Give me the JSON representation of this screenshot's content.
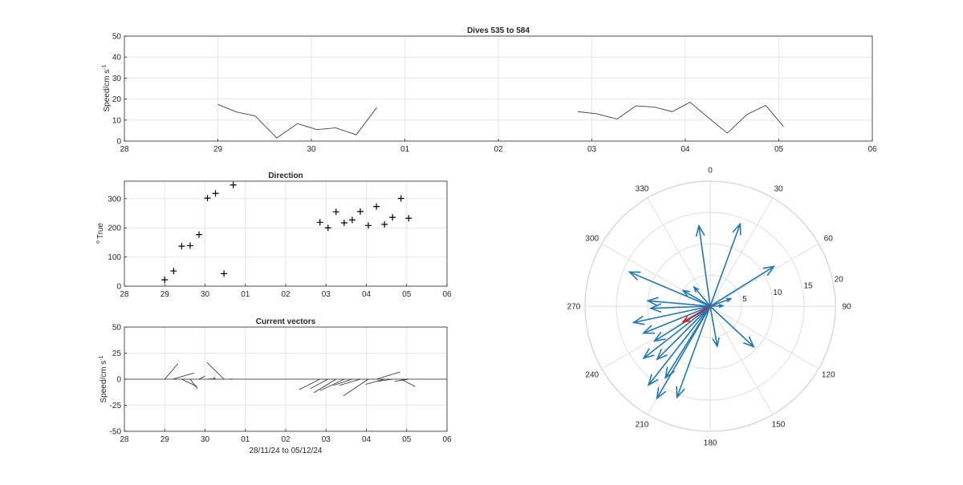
{
  "chart_data": [
    {
      "type": "line",
      "title": "Dives 535 to 584",
      "ylabel": "Speed/cm s",
      "ylabel_sup": "-1",
      "ylim": [
        0,
        50
      ],
      "xlim": [
        28,
        36
      ],
      "yticks": [
        "0",
        "10",
        "20",
        "30",
        "40",
        "50"
      ],
      "xticklabels": [
        "28",
        "29",
        "30",
        "01",
        "02",
        "03",
        "04",
        "05",
        "06"
      ],
      "grid": true,
      "color": "#262626",
      "segments": [
        [
          [
            29.0,
            17.5
          ],
          [
            29.2,
            13.8
          ],
          [
            29.4,
            12.0
          ],
          [
            29.63,
            1.5
          ],
          [
            29.85,
            8.3
          ],
          [
            30.06,
            5.5
          ],
          [
            30.26,
            6.3
          ],
          [
            30.48,
            3.0
          ],
          [
            30.7,
            16.0
          ]
        ],
        [
          [
            32.85,
            14.0
          ],
          [
            33.05,
            13.0
          ],
          [
            33.27,
            10.5
          ],
          [
            33.47,
            16.8
          ],
          [
            33.67,
            16.2
          ],
          [
            33.86,
            14.0
          ],
          [
            34.05,
            18.5
          ],
          [
            34.25,
            11.0
          ],
          [
            34.45,
            3.8
          ],
          [
            34.66,
            12.7
          ],
          [
            34.86,
            17.0
          ],
          [
            35.05,
            7.0
          ]
        ]
      ]
    },
    {
      "type": "scatter",
      "title": "Direction",
      "ylabel": "True",
      "ylabel_sup": "o",
      "ylim": [
        0,
        360
      ],
      "xlim": [
        28,
        36
      ],
      "yticks": [
        "0",
        "100",
        "200",
        "300"
      ],
      "xticklabels": [
        "28",
        "29",
        "30",
        "01",
        "02",
        "03",
        "04",
        "05",
        "06"
      ],
      "grid": true,
      "marker": "+",
      "color": "#000000",
      "points": [
        [
          29.0,
          22
        ],
        [
          29.22,
          52
        ],
        [
          29.42,
          137
        ],
        [
          29.63,
          139
        ],
        [
          29.85,
          177
        ],
        [
          30.06,
          302
        ],
        [
          30.26,
          318
        ],
        [
          30.47,
          43
        ],
        [
          30.7,
          347
        ],
        [
          32.85,
          219
        ],
        [
          33.05,
          200
        ],
        [
          33.25,
          255
        ],
        [
          33.45,
          217
        ],
        [
          33.65,
          227
        ],
        [
          33.85,
          256
        ],
        [
          34.05,
          208
        ],
        [
          34.25,
          273
        ],
        [
          34.45,
          212
        ],
        [
          34.65,
          236
        ],
        [
          34.86,
          301
        ],
        [
          35.05,
          233
        ]
      ]
    },
    {
      "type": "line",
      "title": "Current vectors",
      "ylabel": "Speed/cm s",
      "ylabel_sup": "-1",
      "xlabel": "28/11/24 to 05/12/24",
      "ylim": [
        -50,
        50
      ],
      "xlim": [
        28,
        36
      ],
      "yticks": [
        "-50",
        "-25",
        "0",
        "25",
        "50"
      ],
      "xticklabels": [
        "28",
        "29",
        "30",
        "01",
        "02",
        "03",
        "04",
        "05",
        "06"
      ],
      "grid": true,
      "color": "#262626",
      "vectors": [
        [
          29.0,
          0,
          0.33,
          15
        ],
        [
          29.2,
          0,
          0.53,
          6
        ],
        [
          29.42,
          0,
          0.38,
          -7
        ],
        [
          29.63,
          0,
          0.18,
          -9
        ],
        [
          29.85,
          0,
          0.15,
          3
        ],
        [
          30.06,
          0,
          0.18,
          0.5
        ],
        [
          30.26,
          0,
          -0.04,
          2
        ],
        [
          30.47,
          0,
          -0.42,
          16
        ],
        [
          30.7,
          0,
          -0.1,
          0.2
        ],
        [
          32.85,
          0,
          -0.52,
          -10
        ],
        [
          33.05,
          0,
          -0.44,
          -9
        ],
        [
          33.25,
          0,
          -0.55,
          -13
        ],
        [
          33.45,
          0,
          -0.6,
          -11
        ],
        [
          33.65,
          0,
          -0.47,
          -6
        ],
        [
          33.85,
          0,
          -0.52,
          -6
        ],
        [
          34.05,
          0,
          -0.62,
          -16
        ],
        [
          34.25,
          0,
          0.59,
          7
        ],
        [
          34.45,
          0,
          -0.47,
          -5
        ],
        [
          34.65,
          0,
          -0.36,
          -2
        ],
        [
          34.86,
          0,
          0.35,
          -7
        ],
        [
          35.05,
          0,
          -0.35,
          -2
        ]
      ]
    },
    {
      "type": "polar",
      "rlim": [
        0,
        20
      ],
      "rticks": [
        "5",
        "10",
        "15",
        "20"
      ],
      "theta_labels": [
        "0",
        "30",
        "60",
        "90",
        "120",
        "150",
        "180",
        "210",
        "240",
        "270",
        "300",
        "330"
      ],
      "theta_direction": "clockwise",
      "theta_zero": "top",
      "grid": true,
      "vector_color": "#1f77b4",
      "mean_color": "#e31a1c",
      "vectors": [
        [
          352,
          13
        ],
        [
          20,
          14
        ],
        [
          58,
          12
        ],
        [
          88,
          2
        ],
        [
          70,
          3.5
        ],
        [
          133,
          9.5
        ],
        [
          170,
          6.5
        ],
        [
          200,
          15.5
        ],
        [
          210,
          17
        ],
        [
          218,
          16
        ],
        [
          212,
          13.5
        ],
        [
          225,
          12
        ],
        [
          232,
          13.5
        ],
        [
          238,
          10.5
        ],
        [
          248,
          11.5
        ],
        [
          258,
          12.5
        ],
        [
          268,
          9.5
        ],
        [
          275,
          10
        ],
        [
          293,
          14
        ],
        [
          320,
          4
        ],
        [
          300,
          5
        ]
      ],
      "mean_vector": [
        240,
        5
      ]
    }
  ]
}
